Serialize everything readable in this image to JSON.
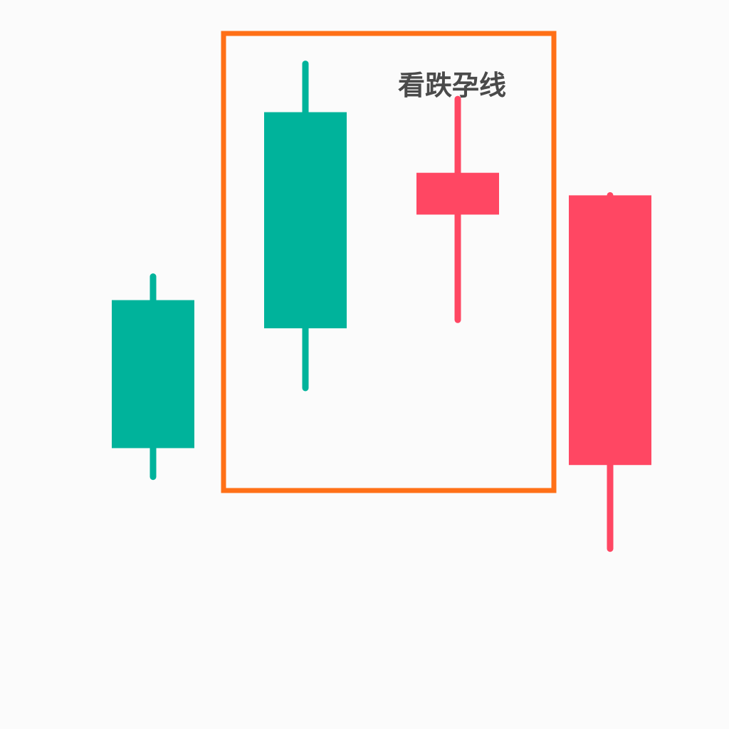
{
  "chart_data": {
    "type": "candlestick",
    "title": "",
    "xlabel": "",
    "ylabel": "",
    "ylim": [
      0,
      100
    ],
    "grid": false,
    "candles": [
      {
        "name": "candle-1",
        "open": 31.9,
        "close": 63.4,
        "high": 68.4,
        "low": 25.8,
        "direction": "up"
      },
      {
        "name": "candle-2",
        "open": 57.4,
        "close": 103.4,
        "high": 113.7,
        "low": 44.7,
        "direction": "up"
      },
      {
        "name": "candle-3",
        "open": 90.5,
        "close": 81.6,
        "high": 106.2,
        "low": 59.2,
        "direction": "down"
      },
      {
        "name": "candle-4",
        "open": 85.7,
        "close": 28.3,
        "high": 85.7,
        "low": 10.5,
        "direction": "down"
      }
    ],
    "annotation": {
      "label": "看跌孕线",
      "covers_candles": [
        2,
        3
      ]
    },
    "colors": {
      "up": "#00b39b",
      "down": "#ff4763",
      "highlight": "#ff7017",
      "label": "#4a4a4a",
      "background": "#fbfbfb"
    }
  }
}
